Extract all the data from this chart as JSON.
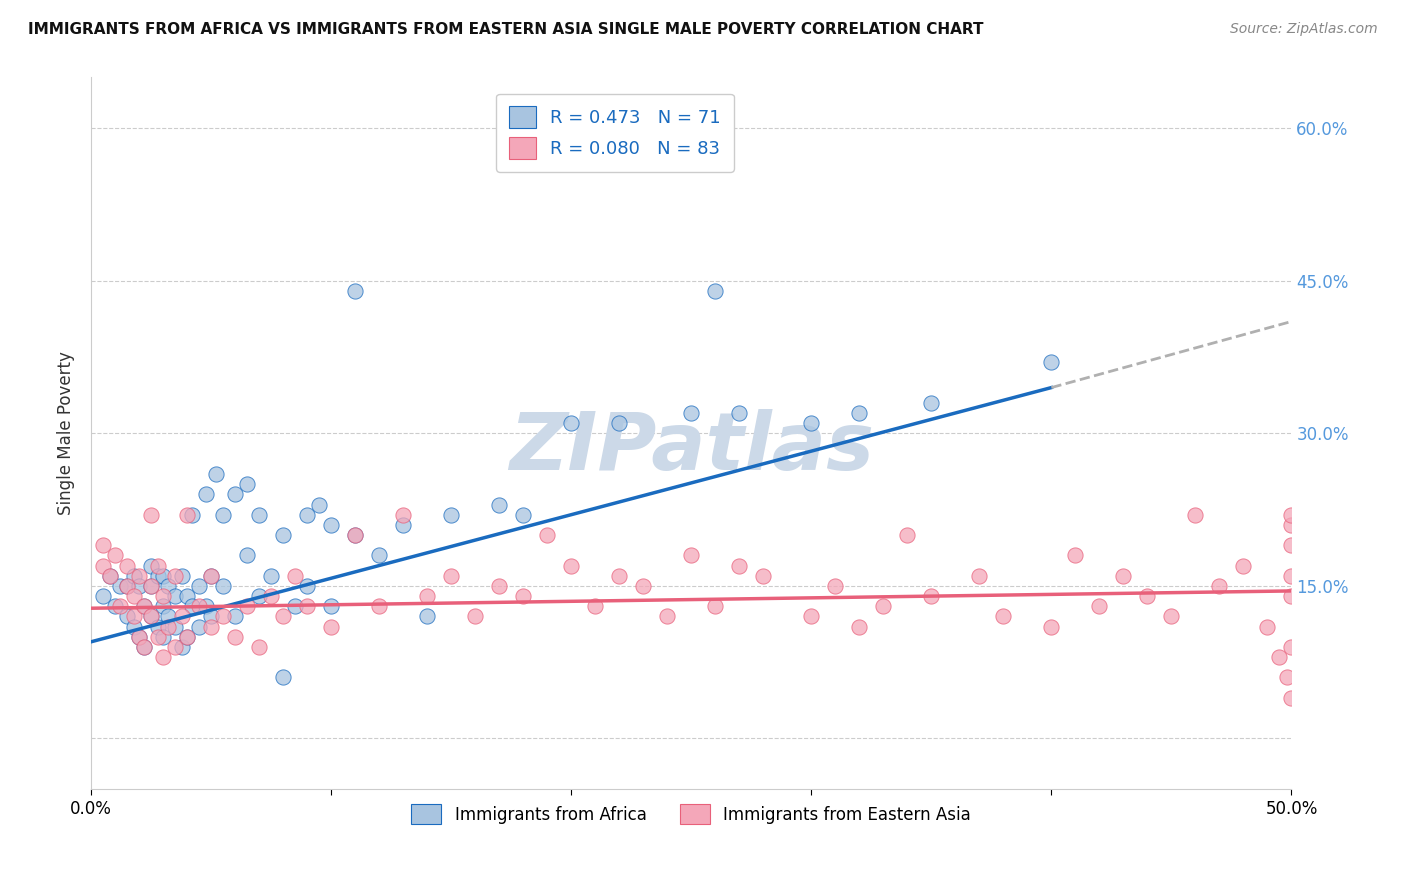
{
  "title": "IMMIGRANTS FROM AFRICA VS IMMIGRANTS FROM EASTERN ASIA SINGLE MALE POVERTY CORRELATION CHART",
  "source": "Source: ZipAtlas.com",
  "ylabel": "Single Male Poverty",
  "xlim": [
    0.0,
    0.5
  ],
  "ylim": [
    -0.05,
    0.65
  ],
  "yticks": [
    0.0,
    0.15,
    0.3,
    0.45,
    0.6
  ],
  "ytick_labels": [
    "",
    "15.0%",
    "30.0%",
    "45.0%",
    "60.0%"
  ],
  "xticks": [
    0.0,
    0.1,
    0.2,
    0.3,
    0.4,
    0.5
  ],
  "xtick_labels": [
    "0.0%",
    "",
    "",
    "",
    "",
    "50.0%"
  ],
  "r_africa": 0.473,
  "n_africa": 71,
  "r_eastern_asia": 0.08,
  "n_eastern_asia": 83,
  "color_africa": "#a8c4e0",
  "color_eastern_asia": "#f4a7b9",
  "line_color_africa": "#1a6bbf",
  "line_color_eastern_asia": "#e8607a",
  "line_color_extrapolated": "#b0b0b0",
  "background_color": "#ffffff",
  "watermark_text": "ZIPatlas",
  "watermark_color": "#ccd9e8",
  "africa_line_x0": 0.0,
  "africa_line_y0": 0.095,
  "africa_line_x1": 0.4,
  "africa_line_y1": 0.345,
  "africa_line_xdash_end": 0.5,
  "africa_line_ydash_end": 0.41,
  "ea_line_x0": 0.0,
  "ea_line_y0": 0.128,
  "ea_line_x1": 0.5,
  "ea_line_y1": 0.145,
  "africa_scatter_x": [
    0.005,
    0.008,
    0.01,
    0.012,
    0.015,
    0.015,
    0.018,
    0.018,
    0.02,
    0.02,
    0.022,
    0.022,
    0.025,
    0.025,
    0.025,
    0.028,
    0.028,
    0.03,
    0.03,
    0.03,
    0.032,
    0.032,
    0.035,
    0.035,
    0.038,
    0.038,
    0.04,
    0.04,
    0.042,
    0.042,
    0.045,
    0.045,
    0.048,
    0.048,
    0.05,
    0.05,
    0.052,
    0.055,
    0.055,
    0.06,
    0.06,
    0.065,
    0.065,
    0.07,
    0.07,
    0.075,
    0.08,
    0.08,
    0.085,
    0.09,
    0.09,
    0.095,
    0.1,
    0.1,
    0.11,
    0.11,
    0.12,
    0.13,
    0.14,
    0.15,
    0.17,
    0.18,
    0.2,
    0.22,
    0.25,
    0.26,
    0.27,
    0.3,
    0.32,
    0.35,
    0.4
  ],
  "africa_scatter_y": [
    0.14,
    0.16,
    0.13,
    0.15,
    0.12,
    0.15,
    0.11,
    0.16,
    0.1,
    0.15,
    0.09,
    0.13,
    0.12,
    0.15,
    0.17,
    0.11,
    0.16,
    0.1,
    0.13,
    0.16,
    0.12,
    0.15,
    0.11,
    0.14,
    0.09,
    0.16,
    0.1,
    0.14,
    0.13,
    0.22,
    0.11,
    0.15,
    0.13,
    0.24,
    0.12,
    0.16,
    0.26,
    0.22,
    0.15,
    0.12,
    0.24,
    0.18,
    0.25,
    0.14,
    0.22,
    0.16,
    0.06,
    0.2,
    0.13,
    0.15,
    0.22,
    0.23,
    0.13,
    0.21,
    0.2,
    0.44,
    0.18,
    0.21,
    0.12,
    0.22,
    0.23,
    0.22,
    0.31,
    0.31,
    0.32,
    0.44,
    0.32,
    0.31,
    0.32,
    0.33,
    0.37
  ],
  "eastern_asia_scatter_x": [
    0.005,
    0.005,
    0.008,
    0.01,
    0.012,
    0.015,
    0.015,
    0.018,
    0.018,
    0.02,
    0.02,
    0.022,
    0.022,
    0.025,
    0.025,
    0.025,
    0.028,
    0.028,
    0.03,
    0.03,
    0.032,
    0.035,
    0.035,
    0.038,
    0.04,
    0.04,
    0.045,
    0.05,
    0.05,
    0.055,
    0.06,
    0.065,
    0.07,
    0.075,
    0.08,
    0.085,
    0.09,
    0.1,
    0.11,
    0.12,
    0.13,
    0.14,
    0.15,
    0.16,
    0.17,
    0.18,
    0.19,
    0.2,
    0.21,
    0.22,
    0.23,
    0.24,
    0.25,
    0.26,
    0.27,
    0.28,
    0.3,
    0.31,
    0.32,
    0.33,
    0.34,
    0.35,
    0.37,
    0.38,
    0.4,
    0.41,
    0.42,
    0.43,
    0.44,
    0.45,
    0.46,
    0.47,
    0.48,
    0.49,
    0.495,
    0.498,
    0.5,
    0.5,
    0.5,
    0.5,
    0.5,
    0.5,
    0.5
  ],
  "eastern_asia_scatter_y": [
    0.17,
    0.19,
    0.16,
    0.18,
    0.13,
    0.15,
    0.17,
    0.12,
    0.14,
    0.1,
    0.16,
    0.09,
    0.13,
    0.12,
    0.15,
    0.22,
    0.1,
    0.17,
    0.08,
    0.14,
    0.11,
    0.09,
    0.16,
    0.12,
    0.1,
    0.22,
    0.13,
    0.11,
    0.16,
    0.12,
    0.1,
    0.13,
    0.09,
    0.14,
    0.12,
    0.16,
    0.13,
    0.11,
    0.2,
    0.13,
    0.22,
    0.14,
    0.16,
    0.12,
    0.15,
    0.14,
    0.2,
    0.17,
    0.13,
    0.16,
    0.15,
    0.12,
    0.18,
    0.13,
    0.17,
    0.16,
    0.12,
    0.15,
    0.11,
    0.13,
    0.2,
    0.14,
    0.16,
    0.12,
    0.11,
    0.18,
    0.13,
    0.16,
    0.14,
    0.12,
    0.22,
    0.15,
    0.17,
    0.11,
    0.08,
    0.06,
    0.09,
    0.14,
    0.19,
    0.21,
    0.04,
    0.16,
    0.22
  ]
}
